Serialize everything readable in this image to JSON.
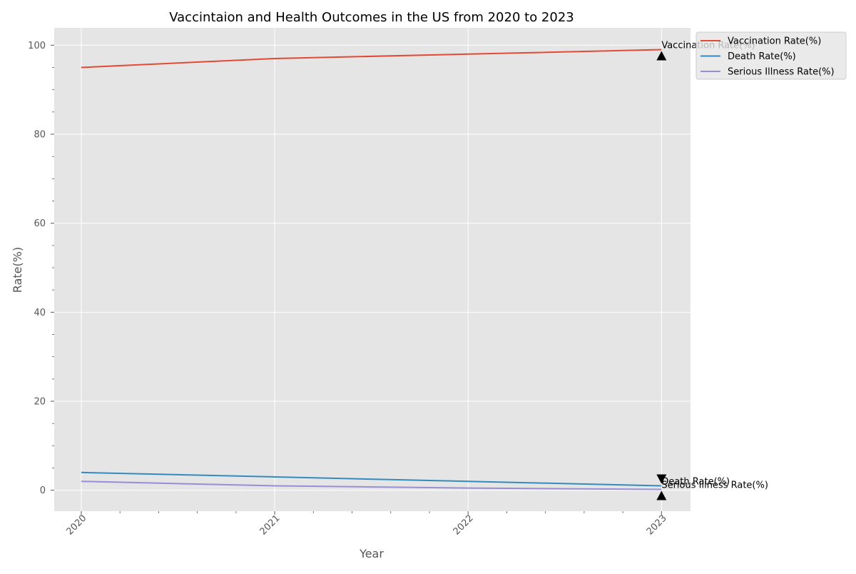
{
  "chart_data": {
    "type": "line",
    "title": "Vaccintaion and Health Outcomes in the US from 2020 to 2023",
    "xlabel": "Year",
    "ylabel": "Rate(%)",
    "x": [
      2020,
      2021,
      2022,
      2023
    ],
    "xlim": [
      2019.86,
      2023.15
    ],
    "ylim": [
      -4.7,
      103.9
    ],
    "x_ticks": [
      "2020",
      "2021",
      "2022",
      "2023"
    ],
    "y_ticks": [
      0,
      20,
      40,
      60,
      80,
      100
    ],
    "grid": true,
    "legend_position": "outside top-right",
    "background_color": "#e5e5e5",
    "series": [
      {
        "name": "Vaccination Rate(%)",
        "color": "#e24a33",
        "values": [
          95,
          97,
          98,
          99
        ],
        "annotation": {
          "text": "Vaccination Rate(%)",
          "x": 2023,
          "y": 99,
          "marker": "up-arrow"
        }
      },
      {
        "name": "Death Rate(%)",
        "color": "#348abd",
        "values": [
          4,
          3,
          2,
          1
        ],
        "annotation": {
          "text": "Death Rate(%)",
          "x": 2023,
          "y": 1,
          "marker": "down-arrow"
        }
      },
      {
        "name": "Serious Illness Rate(%)",
        "color": "#988ed5",
        "values": [
          2,
          1,
          0.5,
          0.2
        ],
        "annotation": {
          "text": "Serious Illness Rate(%)",
          "x": 2023,
          "y": 0.2,
          "marker": "up-arrow"
        }
      }
    ]
  }
}
